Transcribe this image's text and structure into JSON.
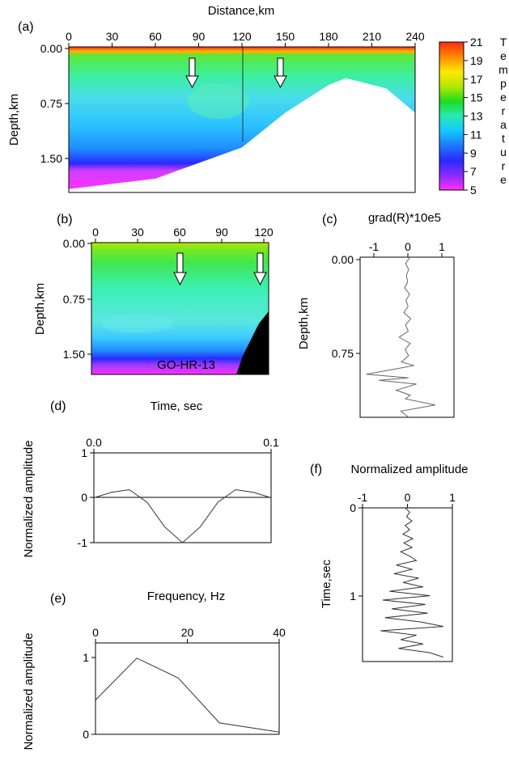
{
  "panels": {
    "a": {
      "letter": "(a)",
      "xlabel": "Distance,km",
      "ylabel": "Depth,km",
      "xticks": [
        "0",
        "30",
        "60",
        "90",
        "120",
        "150",
        "180",
        "210",
        "240"
      ],
      "yticks": [
        "0.00",
        "0.75",
        "1.50"
      ]
    },
    "colorbar": {
      "label_letters": [
        "T",
        "e",
        "m",
        "p",
        "e",
        "r",
        "a",
        "t",
        "u",
        "r",
        "e"
      ],
      "ticks": [
        "21",
        "19",
        "17",
        "15",
        "13",
        "11",
        "9",
        "7",
        "5"
      ],
      "colors": [
        "#ff2a14",
        "#ff8a00",
        "#ffe800",
        "#b4e800",
        "#1edc1e",
        "#2ae8b4",
        "#14c8ff",
        "#1e78ff",
        "#2a2aff",
        "#8a2aff",
        "#ff30ff"
      ]
    },
    "b": {
      "letter": "(b)",
      "ylabel": "Depth,km",
      "xticks": [
        "0",
        "30",
        "60",
        "90",
        "120"
      ],
      "yticks": [
        "0.00",
        "0.75",
        "1.50"
      ],
      "annotation": "GO-HR-13"
    },
    "c": {
      "letter": "(c)",
      "xlabel": "grad(R)*10e5",
      "ylabel": "Depth,km",
      "xticks": [
        "-1",
        "0",
        "1"
      ],
      "yticks": [
        "0.00",
        "0.75"
      ]
    },
    "d": {
      "letter": "(d)",
      "xlabel": "Time, sec",
      "ylabel": "Normalized amplitude",
      "xticks": [
        "0.0",
        "0.1"
      ],
      "yticks": [
        "1",
        "0",
        "-1"
      ]
    },
    "e": {
      "letter": "(e)",
      "xlabel": "Frequency, Hz",
      "ylabel": "Normalized amplitude",
      "xticks": [
        "0",
        "20",
        "40"
      ],
      "yticks": [
        "1",
        "0"
      ]
    },
    "f": {
      "letter": "(f)",
      "xlabel": "Normalized amplitude",
      "ylabel": "Time,sec",
      "xticks": [
        "-1",
        "0",
        "1"
      ],
      "yticks": [
        "0",
        "1"
      ]
    }
  },
  "chart_data": [
    {
      "panel": "a",
      "type": "heatmap",
      "x": [
        0,
        240
      ],
      "xlim": [
        0,
        240
      ],
      "ylim": [
        0,
        2.1
      ],
      "colorbar_range": [
        5,
        21
      ],
      "bottom_boundary": {
        "x": [
          0,
          60,
          120,
          150,
          180,
          192,
          220,
          240
        ],
        "depth": [
          2.05,
          1.9,
          1.45,
          0.95,
          0.55,
          0.45,
          0.6,
          0.95
        ]
      },
      "arrows_x": [
        85,
        147
      ],
      "line_x": 120
    },
    {
      "panel": "b",
      "type": "heatmap",
      "xlim": [
        0,
        120
      ],
      "ylim": [
        0,
        1.7
      ],
      "arrows_x": [
        60,
        116
      ],
      "annotation": "GO-HR-13"
    },
    {
      "panel": "c",
      "type": "line",
      "xlim": [
        -1.5,
        1.5
      ],
      "ylim": [
        0,
        1.3
      ],
      "x": [
        0.1,
        -0.05,
        0.05,
        -0.02,
        0.02,
        -0.08,
        0.08,
        -0.03,
        0.03,
        -0.1,
        0.12,
        -0.05,
        0.04,
        -0.25,
        0.1,
        -0.06,
        0.05,
        -0.18,
        0.22,
        -1.3,
        0.05,
        -0.9,
        0.3,
        -0.35,
        0.1,
        -0.05,
        0.9,
        -0.2,
        0.05
      ],
      "y": [
        0.0,
        0.05,
        0.1,
        0.15,
        0.2,
        0.25,
        0.3,
        0.35,
        0.4,
        0.45,
        0.5,
        0.55,
        0.6,
        0.65,
        0.7,
        0.75,
        0.8,
        0.85,
        0.88,
        0.95,
        0.98,
        1.0,
        1.03,
        1.08,
        1.12,
        1.15,
        1.2,
        1.25,
        1.3
      ]
    },
    {
      "panel": "d",
      "type": "line",
      "xlim": [
        0.0,
        0.1
      ],
      "ylim": [
        -1,
        1
      ],
      "x": [
        0.0,
        0.01,
        0.02,
        0.03,
        0.04,
        0.05,
        0.06,
        0.07,
        0.08,
        0.09,
        0.1
      ],
      "y": [
        0.0,
        0.12,
        0.18,
        -0.1,
        -0.65,
        -1.0,
        -0.65,
        -0.1,
        0.18,
        0.12,
        0.0
      ]
    },
    {
      "panel": "e",
      "type": "line",
      "xlim": [
        0,
        40
      ],
      "ylim": [
        0,
        1.2
      ],
      "x": [
        0,
        9,
        18,
        27,
        40
      ],
      "y": [
        0.45,
        1.0,
        0.74,
        0.15,
        0.03
      ]
    },
    {
      "panel": "f",
      "type": "line",
      "xlim": [
        -1,
        1
      ],
      "ylim": [
        0,
        1.75
      ],
      "y": [
        0.0,
        0.05,
        0.1,
        0.15,
        0.2,
        0.25,
        0.3,
        0.35,
        0.4,
        0.45,
        0.5,
        0.55,
        0.6,
        0.65,
        0.7,
        0.75,
        0.8,
        0.85,
        0.9,
        0.95,
        1.0,
        1.05,
        1.1,
        1.15,
        1.2,
        1.25,
        1.3,
        1.35,
        1.4,
        1.45,
        1.5,
        1.55,
        1.6,
        1.65,
        1.7
      ],
      "x": [
        -0.05,
        0.05,
        -0.02,
        0.1,
        -0.05,
        0.05,
        -0.1,
        0.12,
        -0.08,
        0.1,
        -0.15,
        0.05,
        0.2,
        -0.25,
        0.1,
        -0.3,
        0.25,
        -0.1,
        0.35,
        -0.4,
        0.5,
        -0.55,
        0.4,
        -0.35,
        0.45,
        -0.5,
        0.3,
        0.8,
        -0.6,
        0.2,
        -0.15,
        0.35,
        -0.2,
        0.5,
        0.8
      ]
    }
  ]
}
